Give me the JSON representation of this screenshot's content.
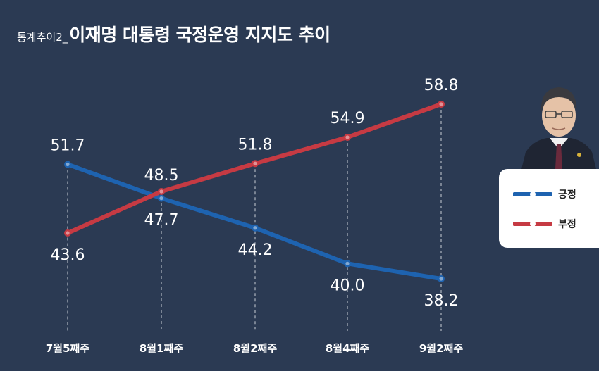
{
  "title": {
    "prefix": "통계추이2_",
    "main": "이재명 대통령 국정운영 지지도 추이"
  },
  "colors": {
    "background": "#2b3a53",
    "positive": "#1e63b0",
    "negative": "#c63a43",
    "gridline": "#c8cdd6"
  },
  "chart_data": {
    "type": "line",
    "categories": [
      "7월5째주",
      "8월1째주",
      "8월2째주",
      "8월4째주",
      "9월2째주"
    ],
    "series": [
      {
        "name": "긍정",
        "values": [
          51.7,
          47.7,
          44.2,
          40.0,
          38.2
        ],
        "label_position": "above-below"
      },
      {
        "name": "부정",
        "values": [
          43.6,
          48.5,
          51.8,
          54.9,
          58.8
        ]
      }
    ],
    "value_labels": {
      "positive": [
        "51.7",
        "47.7",
        "44.2",
        "40.0",
        "38.2"
      ],
      "negative": [
        "43.6",
        "48.5",
        "51.8",
        "54.9",
        "58.8"
      ]
    },
    "legend_placement": "right",
    "grid": "vertical dashed"
  },
  "legend": {
    "items": [
      {
        "label": "긍정",
        "icon": "blue-line-marker-icon"
      },
      {
        "label": "부정",
        "icon": "red-line-marker-icon"
      }
    ]
  },
  "portrait": {
    "icon": "person-portrait-icon"
  }
}
